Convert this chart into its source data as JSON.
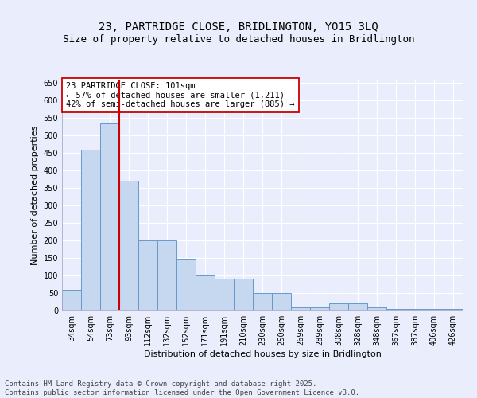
{
  "title": "23, PARTRIDGE CLOSE, BRIDLINGTON, YO15 3LQ",
  "subtitle": "Size of property relative to detached houses in Bridlington",
  "xlabel": "Distribution of detached houses by size in Bridlington",
  "ylabel": "Number of detached properties",
  "categories": [
    "34sqm",
    "54sqm",
    "73sqm",
    "93sqm",
    "112sqm",
    "132sqm",
    "152sqm",
    "171sqm",
    "191sqm",
    "210sqm",
    "230sqm",
    "250sqm",
    "269sqm",
    "289sqm",
    "308sqm",
    "328sqm",
    "348sqm",
    "367sqm",
    "387sqm",
    "406sqm",
    "426sqm"
  ],
  "values": [
    60,
    460,
    535,
    370,
    200,
    200,
    145,
    100,
    90,
    90,
    50,
    50,
    10,
    10,
    20,
    20,
    10,
    5,
    5,
    5,
    5
  ],
  "bar_color": "#c5d8f0",
  "bar_edge_color": "#6699cc",
  "vline_x_index": 2.5,
  "vline_color": "#cc0000",
  "annotation_text": "23 PARTRIDGE CLOSE: 101sqm\n← 57% of detached houses are smaller (1,211)\n42% of semi-detached houses are larger (885) →",
  "annotation_box_color": "#ffffff",
  "annotation_box_edge": "#cc0000",
  "ylim": [
    0,
    660
  ],
  "yticks": [
    0,
    50,
    100,
    150,
    200,
    250,
    300,
    350,
    400,
    450,
    500,
    550,
    600,
    650
  ],
  "footer_text": "Contains HM Land Registry data © Crown copyright and database right 2025.\nContains public sector information licensed under the Open Government Licence v3.0.",
  "bg_color": "#eaeefc",
  "plot_bg_color": "#eaeefc",
  "grid_color": "#ffffff",
  "title_fontsize": 10,
  "subtitle_fontsize": 9,
  "label_fontsize": 8,
  "tick_fontsize": 7,
  "annotation_fontsize": 7.5,
  "footer_fontsize": 6.5
}
